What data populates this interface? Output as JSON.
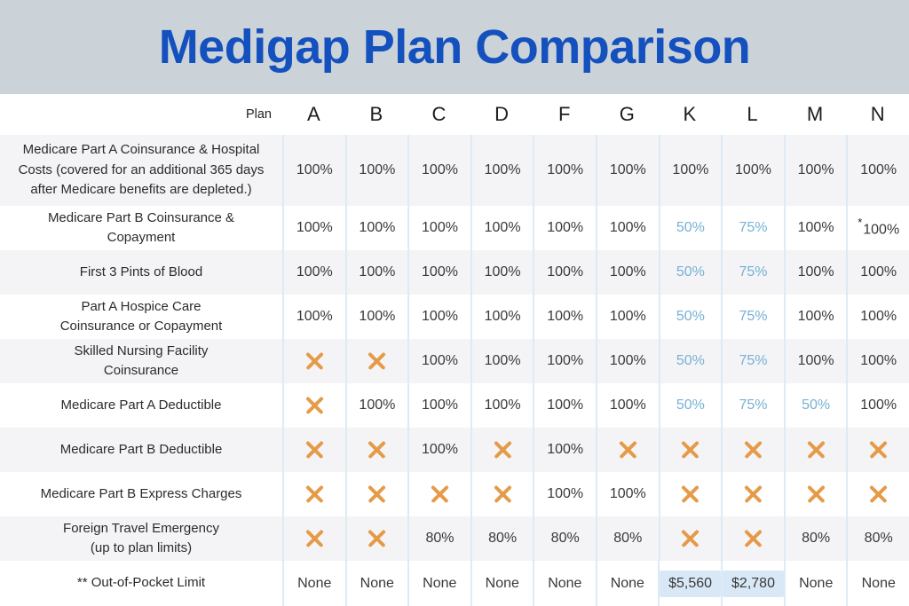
{
  "title": "Medigap Plan Comparison",
  "colors": {
    "banner_bg": "#cbd3d9",
    "title_blue": "#1451be",
    "stripe_gray": "#f4f4f6",
    "column_line_blue": "#dcebf6",
    "partial_coverage_blue": "#76b1d4",
    "not_covered_orange": "#e59a47",
    "limit_highlight_blue": "#d9e8f6",
    "text_dark": "#2b2b2b"
  },
  "table": {
    "corner_label": "Plan",
    "plans": [
      "A",
      "B",
      "C",
      "D",
      "F",
      "G",
      "K",
      "L",
      "M",
      "N"
    ],
    "rows": [
      {
        "label_lines": [
          "Medicare Part A Coinsurance & Hospital",
          "Costs (covered for an additional 365 days",
          "after Medicare benefits are depleted.)"
        ],
        "values": [
          {
            "v": "100%"
          },
          {
            "v": "100%"
          },
          {
            "v": "100%"
          },
          {
            "v": "100%"
          },
          {
            "v": "100%"
          },
          {
            "v": "100%"
          },
          {
            "v": "100%"
          },
          {
            "v": "100%"
          },
          {
            "v": "100%"
          },
          {
            "v": "100%"
          }
        ]
      },
      {
        "label_lines": [
          "Medicare Part B Coinsurance &",
          "Copayment"
        ],
        "values": [
          {
            "v": "100%"
          },
          {
            "v": "100%"
          },
          {
            "v": "100%"
          },
          {
            "v": "100%"
          },
          {
            "v": "100%"
          },
          {
            "v": "100%"
          },
          {
            "v": "50%",
            "blue": true
          },
          {
            "v": "75%",
            "blue": true
          },
          {
            "v": "100%"
          },
          {
            "v": "100%",
            "sup": "*"
          }
        ]
      },
      {
        "label_lines": [
          "First 3 Pints of Blood"
        ],
        "values": [
          {
            "v": "100%"
          },
          {
            "v": "100%"
          },
          {
            "v": "100%"
          },
          {
            "v": "100%"
          },
          {
            "v": "100%"
          },
          {
            "v": "100%"
          },
          {
            "v": "50%",
            "blue": true
          },
          {
            "v": "75%",
            "blue": true
          },
          {
            "v": "100%"
          },
          {
            "v": "100%"
          }
        ]
      },
      {
        "label_lines": [
          "Part A Hospice Care",
          "Coinsurance or Copayment"
        ],
        "values": [
          {
            "v": "100%"
          },
          {
            "v": "100%"
          },
          {
            "v": "100%"
          },
          {
            "v": "100%"
          },
          {
            "v": "100%"
          },
          {
            "v": "100%"
          },
          {
            "v": "50%",
            "blue": true
          },
          {
            "v": "75%",
            "blue": true
          },
          {
            "v": "100%"
          },
          {
            "v": "100%"
          }
        ]
      },
      {
        "label_lines": [
          "Skilled Nursing Facility",
          "Coinsurance"
        ],
        "values": [
          {
            "x": true
          },
          {
            "x": true
          },
          {
            "v": "100%"
          },
          {
            "v": "100%"
          },
          {
            "v": "100%"
          },
          {
            "v": "100%"
          },
          {
            "v": "50%",
            "blue": true
          },
          {
            "v": "75%",
            "blue": true
          },
          {
            "v": "100%"
          },
          {
            "v": "100%"
          }
        ]
      },
      {
        "label_lines": [
          "Medicare Part A Deductible"
        ],
        "values": [
          {
            "x": true
          },
          {
            "v": "100%"
          },
          {
            "v": "100%"
          },
          {
            "v": "100%"
          },
          {
            "v": "100%"
          },
          {
            "v": "100%"
          },
          {
            "v": "50%",
            "blue": true
          },
          {
            "v": "75%",
            "blue": true
          },
          {
            "v": "50%",
            "blue": true
          },
          {
            "v": "100%"
          }
        ]
      },
      {
        "label_lines": [
          "Medicare Part B Deductible"
        ],
        "values": [
          {
            "x": true
          },
          {
            "x": true
          },
          {
            "v": "100%"
          },
          {
            "x": true
          },
          {
            "v": "100%"
          },
          {
            "x": true
          },
          {
            "x": true
          },
          {
            "x": true
          },
          {
            "x": true
          },
          {
            "x": true
          }
        ]
      },
      {
        "label_lines": [
          "Medicare Part B Express Charges"
        ],
        "values": [
          {
            "x": true
          },
          {
            "x": true
          },
          {
            "x": true
          },
          {
            "x": true
          },
          {
            "v": "100%"
          },
          {
            "v": "100%"
          },
          {
            "x": true
          },
          {
            "x": true
          },
          {
            "x": true
          },
          {
            "x": true
          }
        ]
      },
      {
        "label_lines": [
          "Foreign Travel Emergency",
          "(up to plan limits)"
        ],
        "values": [
          {
            "x": true
          },
          {
            "x": true
          },
          {
            "v": "80%"
          },
          {
            "v": "80%"
          },
          {
            "v": "80%"
          },
          {
            "v": "80%"
          },
          {
            "x": true
          },
          {
            "x": true
          },
          {
            "v": "80%"
          },
          {
            "v": "80%"
          }
        ]
      },
      {
        "label_lines": [
          "** Out-of-Pocket Limit"
        ],
        "values": [
          {
            "v": "None"
          },
          {
            "v": "None"
          },
          {
            "v": "None"
          },
          {
            "v": "None"
          },
          {
            "v": "None"
          },
          {
            "v": "None"
          },
          {
            "v": "$5,560",
            "hl": true
          },
          {
            "v": "$2,780",
            "hl": true
          },
          {
            "v": "None"
          },
          {
            "v": "None"
          }
        ]
      }
    ]
  },
  "chart_data": {
    "type": "table",
    "title": "Medigap Plan Comparison",
    "columns": [
      "Plan",
      "A",
      "B",
      "C",
      "D",
      "F",
      "G",
      "K",
      "L",
      "M",
      "N"
    ],
    "not_covered_marker": "✕",
    "rows": [
      [
        "Medicare Part A Coinsurance & Hospital Costs (covered for an additional 365 days after Medicare benefits are depleted.)",
        "100%",
        "100%",
        "100%",
        "100%",
        "100%",
        "100%",
        "100%",
        "100%",
        "100%",
        "100%"
      ],
      [
        "Medicare Part B Coinsurance & Copayment",
        "100%",
        "100%",
        "100%",
        "100%",
        "100%",
        "100%",
        "50%",
        "75%",
        "100%",
        "*100%"
      ],
      [
        "First 3 Pints of Blood",
        "100%",
        "100%",
        "100%",
        "100%",
        "100%",
        "100%",
        "50%",
        "75%",
        "100%",
        "100%"
      ],
      [
        "Part A Hospice Care Coinsurance or Copayment",
        "100%",
        "100%",
        "100%",
        "100%",
        "100%",
        "100%",
        "50%",
        "75%",
        "100%",
        "100%"
      ],
      [
        "Skilled Nursing Facility Coinsurance",
        "✕",
        "✕",
        "100%",
        "100%",
        "100%",
        "100%",
        "50%",
        "75%",
        "100%",
        "100%"
      ],
      [
        "Medicare Part A Deductible",
        "✕",
        "100%",
        "100%",
        "100%",
        "100%",
        "100%",
        "50%",
        "75%",
        "50%",
        "100%"
      ],
      [
        "Medicare Part B Deductible",
        "✕",
        "✕",
        "100%",
        "✕",
        "100%",
        "✕",
        "✕",
        "✕",
        "✕",
        "✕"
      ],
      [
        "Medicare Part B Express Charges",
        "✕",
        "✕",
        "✕",
        "✕",
        "100%",
        "100%",
        "✕",
        "✕",
        "✕",
        "✕"
      ],
      [
        "Foreign Travel Emergency (up to plan limits)",
        "✕",
        "✕",
        "80%",
        "80%",
        "80%",
        "80%",
        "✕",
        "✕",
        "80%",
        "80%"
      ],
      [
        "** Out-of-Pocket Limit",
        "None",
        "None",
        "None",
        "None",
        "None",
        "None",
        "$5,560",
        "$2,780",
        "None",
        "None"
      ]
    ]
  }
}
